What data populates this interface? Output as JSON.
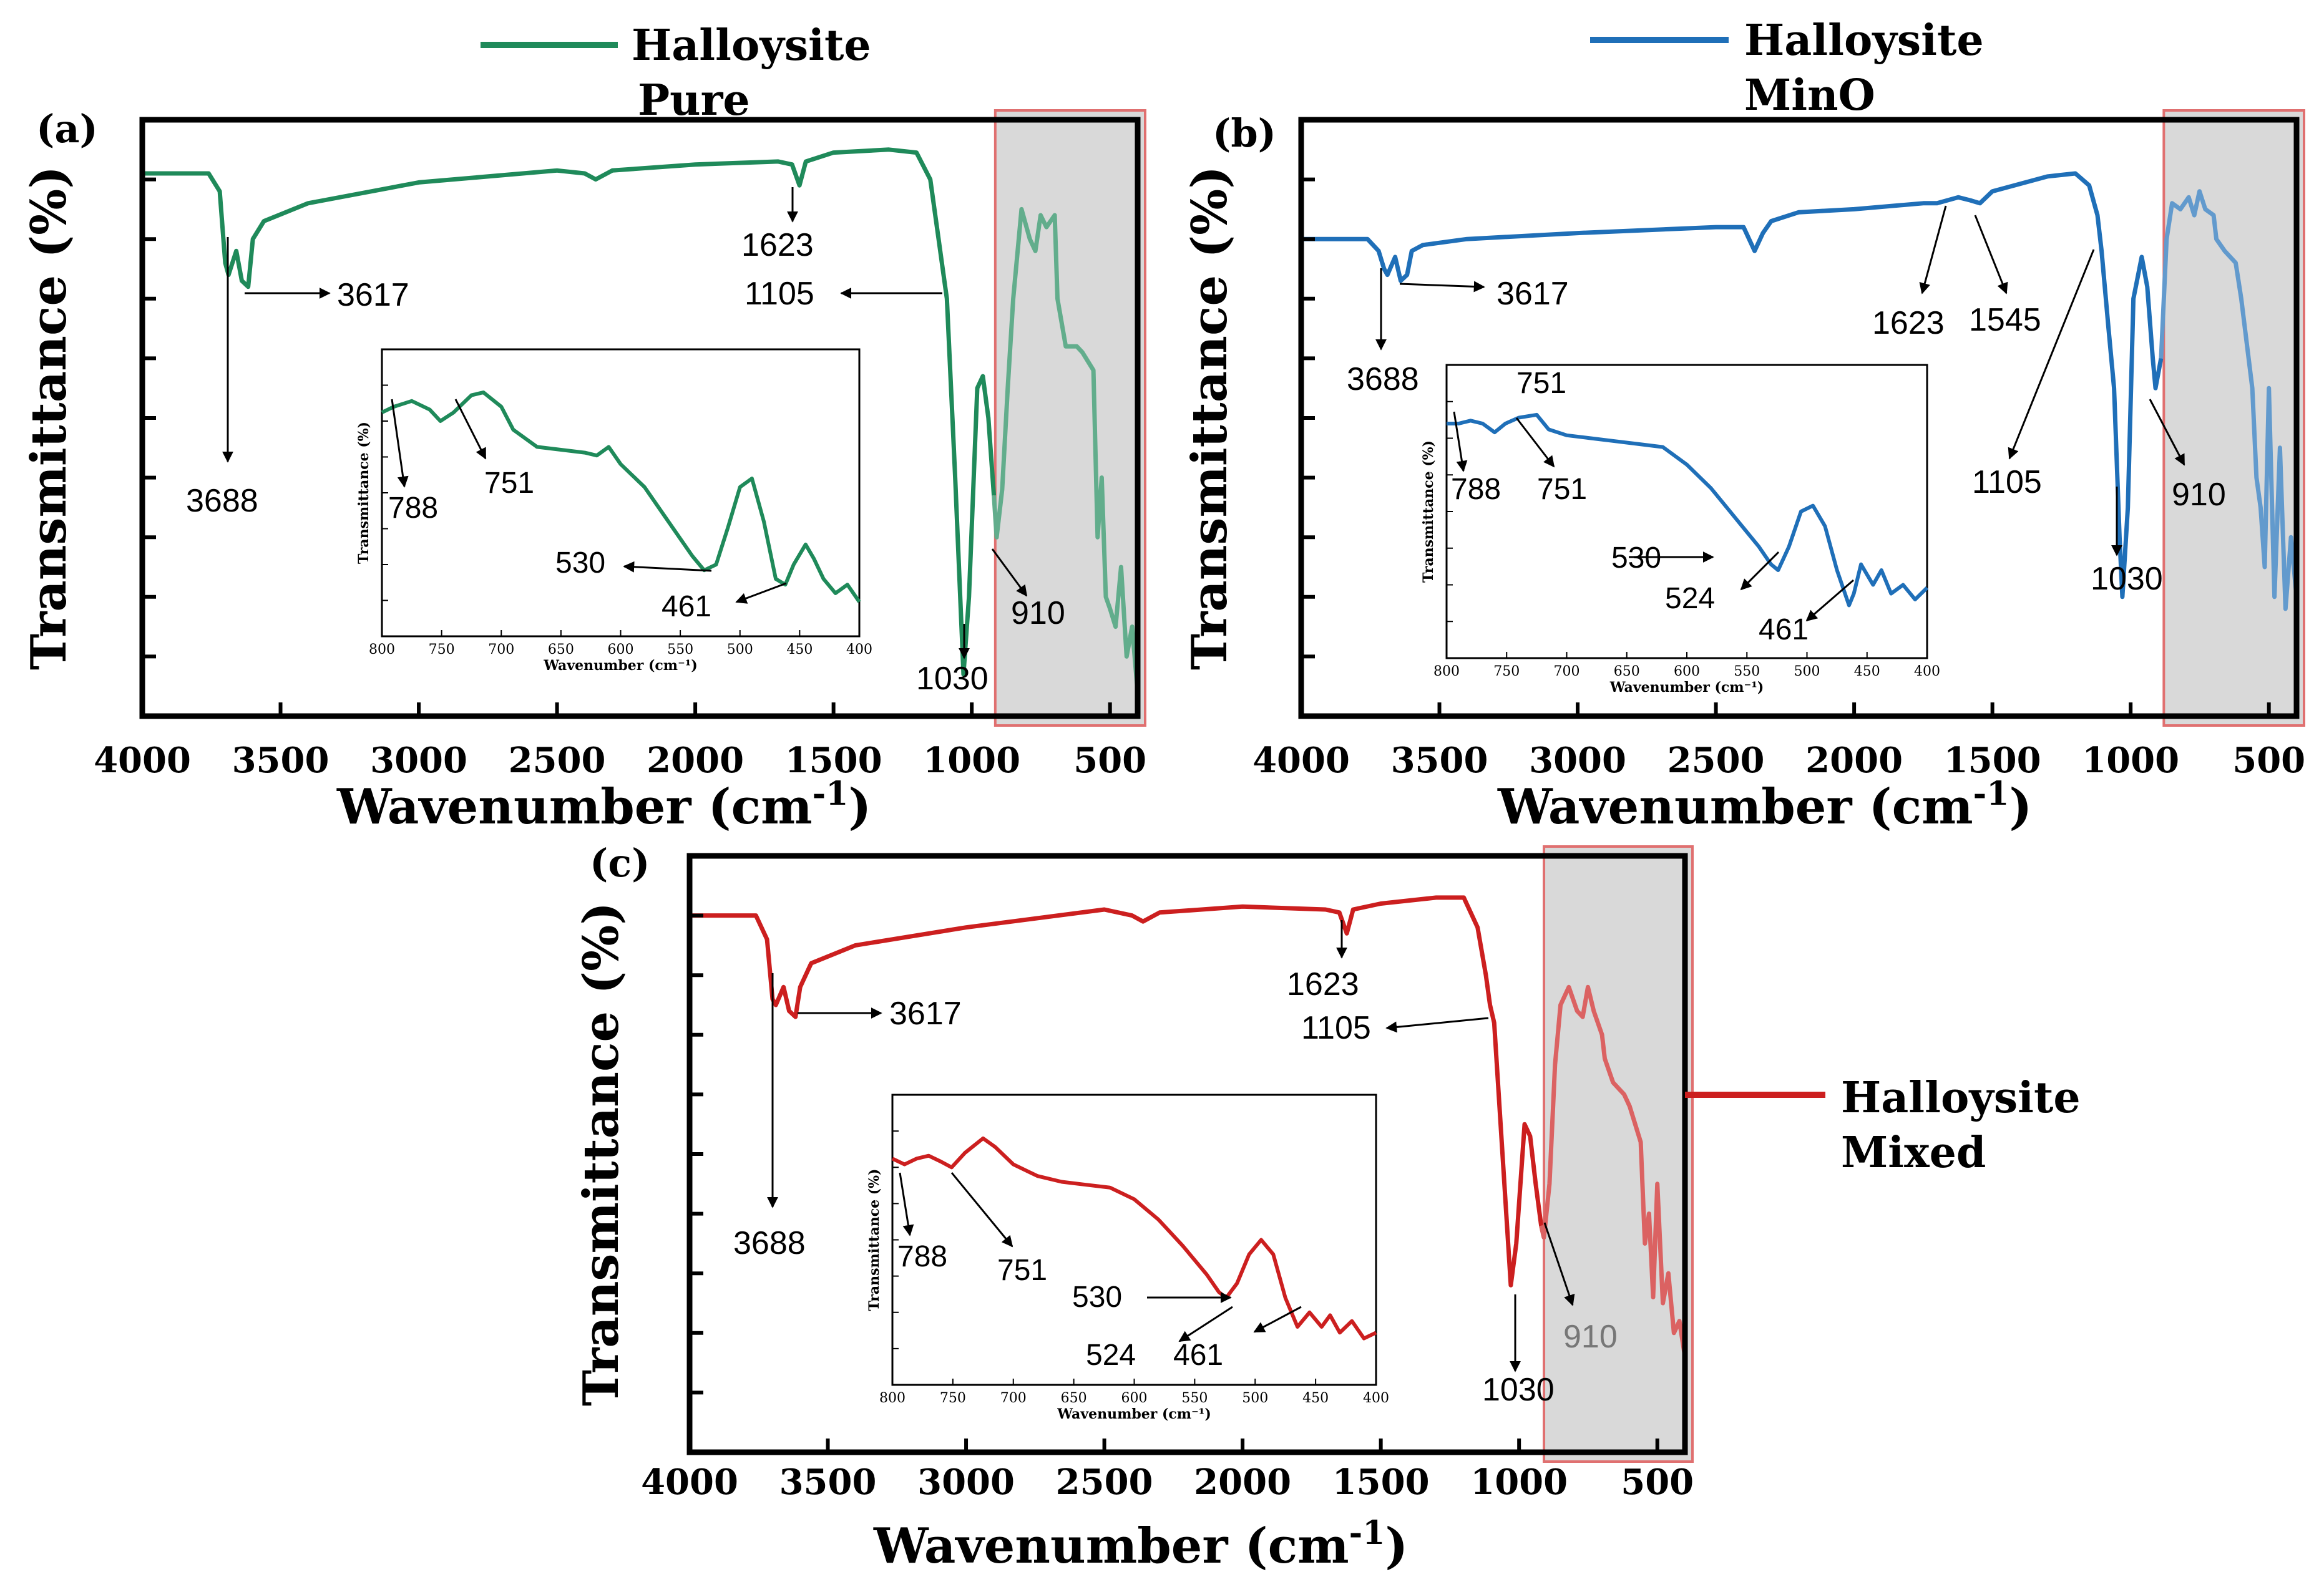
{
  "figure": {
    "x_axis_label_main": "Wavenumber (cm",
    "x_axis_label_sup": "-1",
    "x_axis_label_close": ")",
    "y_axis_label": "Transmittance (%)",
    "inset_x_label": "Wavenumber (cm⁻¹)",
    "inset_y_label": "Transmittance (%)"
  },
  "legends": [
    {
      "line1": "Halloysite",
      "line2": "Pure",
      "color": "#1f8a5a"
    },
    {
      "line1": "Halloysite",
      "line2": "MinO",
      "color": "#1f6fb8"
    },
    {
      "line1": "Halloysite",
      "line2": "Mixed",
      "color": "#cc1f1f"
    }
  ],
  "colors": {
    "shade_fill": "#d9d9d9",
    "shade_border": "#e07070",
    "axis": "#000000",
    "arrow": "#000000"
  },
  "chart_data": [
    {
      "type": "line",
      "panel": "(a)",
      "series_name": "Halloysite Pure",
      "color": "#1f8a5a",
      "xlim": [
        4000,
        400
      ],
      "x_ticks": [
        "4000",
        "3500",
        "3000",
        "2500",
        "2000",
        "1500",
        "1000",
        "500"
      ],
      "x_tick_values": [
        4000,
        3500,
        3000,
        2500,
        2000,
        1500,
        1000,
        500
      ],
      "ylim": [
        0,
        100
      ],
      "shaded_region": [
        915,
        400
      ],
      "x": [
        4000,
        3760,
        3720,
        3700,
        3688,
        3660,
        3640,
        3617,
        3600,
        3560,
        3400,
        3000,
        2500,
        2400,
        2360,
        2300,
        2000,
        1700,
        1650,
        1623,
        1600,
        1500,
        1300,
        1200,
        1150,
        1120,
        1105,
        1090,
        1060,
        1030,
        1010,
        980,
        960,
        940,
        920,
        910,
        890,
        870,
        850,
        820,
        790,
        770,
        751,
        730,
        700,
        690,
        660,
        620,
        600,
        560,
        545,
        530,
        515,
        500,
        480,
        460,
        440,
        420,
        400
      ],
      "y": [
        91,
        91,
        88,
        76,
        74,
        78,
        73,
        72,
        80,
        83,
        86,
        89.5,
        91.5,
        91,
        90,
        91.5,
        92.5,
        93,
        92.5,
        89,
        93,
        94.5,
        95,
        94.5,
        90,
        80,
        75,
        70,
        40,
        7,
        20,
        55,
        57,
        50,
        37,
        30,
        38,
        55,
        70,
        85,
        80,
        78,
        84,
        82,
        84,
        70,
        62,
        62,
        61,
        58,
        30,
        40,
        20,
        18,
        15,
        25,
        10,
        15,
        4
      ],
      "annotations": [
        "3688",
        "3617",
        "1623",
        "1105",
        "1030",
        "910"
      ],
      "inset": {
        "xlim": [
          800,
          400
        ],
        "x_ticks": [
          "800",
          "750",
          "700",
          "650",
          "600",
          "550",
          "500",
          "450",
          "400"
        ],
        "x_tick_values": [
          800,
          750,
          700,
          650,
          600,
          550,
          500,
          450,
          400
        ],
        "ylim": [
          0,
          100
        ],
        "x": [
          800,
          790,
          775,
          760,
          751,
          740,
          725,
          715,
          700,
          690,
          670,
          650,
          630,
          620,
          610,
          600,
          580,
          560,
          540,
          530,
          520,
          510,
          500,
          490,
          480,
          470,
          462,
          455,
          445,
          438,
          430,
          420,
          410,
          400
        ],
        "y": [
          78,
          80,
          82,
          79,
          75,
          78,
          84,
          85,
          80,
          72,
          66,
          65,
          64,
          63,
          66,
          60,
          52,
          40,
          28,
          23,
          25,
          38,
          52,
          55,
          40,
          20,
          18,
          25,
          32,
          27,
          20,
          15,
          18,
          12
        ],
        "annotations": [
          "788",
          "751",
          "530",
          "461"
        ]
      }
    },
    {
      "type": "line",
      "panel": "(b)",
      "series_name": "Halloysite MinO",
      "color": "#1f6fb8",
      "xlim": [
        4000,
        400
      ],
      "x_ticks": [
        "4000",
        "3500",
        "3000",
        "2500",
        "2000",
        "1500",
        "1000",
        "500"
      ],
      "x_tick_values": [
        4000,
        3500,
        3000,
        2500,
        2000,
        1500,
        1000,
        500
      ],
      "ylim": [
        0,
        100
      ],
      "shaded_region": [
        880,
        400
      ],
      "x": [
        4000,
        3760,
        3720,
        3700,
        3688,
        3660,
        3640,
        3617,
        3600,
        3560,
        3400,
        3000,
        2500,
        2400,
        2360,
        2330,
        2300,
        2200,
        2000,
        1750,
        1700,
        1623,
        1580,
        1545,
        1500,
        1300,
        1200,
        1150,
        1120,
        1105,
        1080,
        1060,
        1040,
        1030,
        1010,
        990,
        960,
        940,
        920,
        910,
        890,
        870,
        850,
        820,
        790,
        770,
        751,
        730,
        700,
        690,
        660,
        620,
        600,
        560,
        545,
        530,
        515,
        500,
        480,
        460,
        440,
        420,
        400
      ],
      "y": [
        80,
        80,
        78,
        75,
        74,
        77,
        73,
        74,
        78,
        79,
        80,
        81,
        82,
        82,
        78,
        81,
        83,
        84.5,
        85,
        86,
        86,
        87,
        86.5,
        86,
        88,
        90.5,
        91,
        89,
        84,
        78,
        65,
        55,
        30,
        20,
        35,
        70,
        77,
        72,
        60,
        55,
        60,
        80,
        86,
        85,
        87,
        84,
        88,
        85,
        84,
        80,
        78,
        76,
        70,
        55,
        40,
        35,
        25,
        55,
        20,
        45,
        18,
        30,
        20
      ],
      "annotations": [
        "3688",
        "3617",
        "1623",
        "1545",
        "1105",
        "1030",
        "910"
      ],
      "inset": {
        "xlim": [
          800,
          400
        ],
        "x_ticks": [
          "800",
          "750",
          "700",
          "650",
          "600",
          "550",
          "500",
          "450",
          "400"
        ],
        "x_tick_values": [
          800,
          750,
          700,
          650,
          600,
          550,
          500,
          450,
          400
        ],
        "ylim": [
          0,
          100
        ],
        "x": [
          800,
          790,
          780,
          770,
          760,
          751,
          740,
          725,
          715,
          700,
          680,
          660,
          640,
          620,
          600,
          580,
          560,
          540,
          530,
          524,
          515,
          505,
          495,
          485,
          475,
          465,
          461,
          455,
          445,
          438,
          430,
          420,
          410,
          400
        ],
        "y": [
          80,
          80,
          81,
          80,
          77,
          80,
          82,
          83,
          78,
          76,
          75,
          74,
          73,
          72,
          66,
          58,
          48,
          38,
          32,
          30,
          38,
          50,
          52,
          45,
          30,
          18,
          22,
          32,
          25,
          30,
          22,
          25,
          20,
          24
        ],
        "annotations": [
          "788",
          "751",
          "751",
          "530",
          "524",
          "461"
        ]
      }
    },
    {
      "type": "line",
      "panel": "(c)",
      "series_name": "Halloysite Mixed",
      "color": "#cc1f1f",
      "xlim": [
        4000,
        400
      ],
      "x_ticks": [
        "4000",
        "3500",
        "3000",
        "2500",
        "2000",
        "1500",
        "1000",
        "500"
      ],
      "x_tick_values": [
        4000,
        3500,
        3000,
        2500,
        2000,
        1500,
        1000,
        500
      ],
      "ylim": [
        0,
        100
      ],
      "shaded_region": [
        910,
        400
      ],
      "x": [
        4000,
        3760,
        3720,
        3700,
        3688,
        3660,
        3640,
        3617,
        3600,
        3560,
        3400,
        3000,
        2500,
        2400,
        2360,
        2300,
        2000,
        1700,
        1650,
        1623,
        1600,
        1500,
        1300,
        1200,
        1150,
        1120,
        1105,
        1090,
        1060,
        1030,
        1010,
        980,
        960,
        940,
        920,
        910,
        890,
        870,
        850,
        820,
        790,
        770,
        751,
        730,
        700,
        690,
        660,
        620,
        600,
        560,
        545,
        530,
        515,
        500,
        480,
        460,
        440,
        420,
        400
      ],
      "y": [
        90,
        90,
        86,
        76,
        75,
        78,
        74,
        73,
        78,
        82,
        85,
        88,
        91,
        90,
        89,
        90.5,
        91.5,
        91,
        90.5,
        87,
        91,
        92,
        93,
        93,
        88,
        80,
        75,
        72,
        50,
        28,
        35,
        55,
        53,
        45,
        38,
        36,
        45,
        65,
        75,
        78,
        74,
        73,
        78,
        74,
        70,
        66,
        62,
        60,
        58,
        52,
        35,
        40,
        26,
        45,
        25,
        30,
        20,
        22,
        16
      ],
      "annotations": [
        "3688",
        "3617",
        "1623",
        "1105",
        "1030",
        "910"
      ],
      "inset": {
        "xlim": [
          800,
          400
        ],
        "x_ticks": [
          "800",
          "750",
          "700",
          "650",
          "600",
          "550",
          "500",
          "450",
          "400"
        ],
        "x_tick_values": [
          800,
          750,
          700,
          650,
          600,
          550,
          500,
          450,
          400
        ],
        "ylim": [
          0,
          100
        ],
        "x": [
          800,
          790,
          780,
          770,
          760,
          751,
          740,
          725,
          715,
          700,
          680,
          660,
          640,
          620,
          600,
          580,
          560,
          540,
          530,
          524,
          515,
          505,
          495,
          485,
          475,
          465,
          461,
          455,
          445,
          438,
          430,
          420,
          410,
          400
        ],
        "y": [
          78,
          76,
          78,
          79,
          77,
          75,
          80,
          85,
          82,
          76,
          72,
          70,
          69,
          68,
          64,
          57,
          48,
          38,
          32,
          30,
          35,
          45,
          50,
          45,
          30,
          20,
          22,
          25,
          20,
          24,
          18,
          22,
          16,
          18
        ],
        "annotations": [
          "788",
          "751",
          "530",
          "524",
          "461"
        ]
      }
    }
  ]
}
